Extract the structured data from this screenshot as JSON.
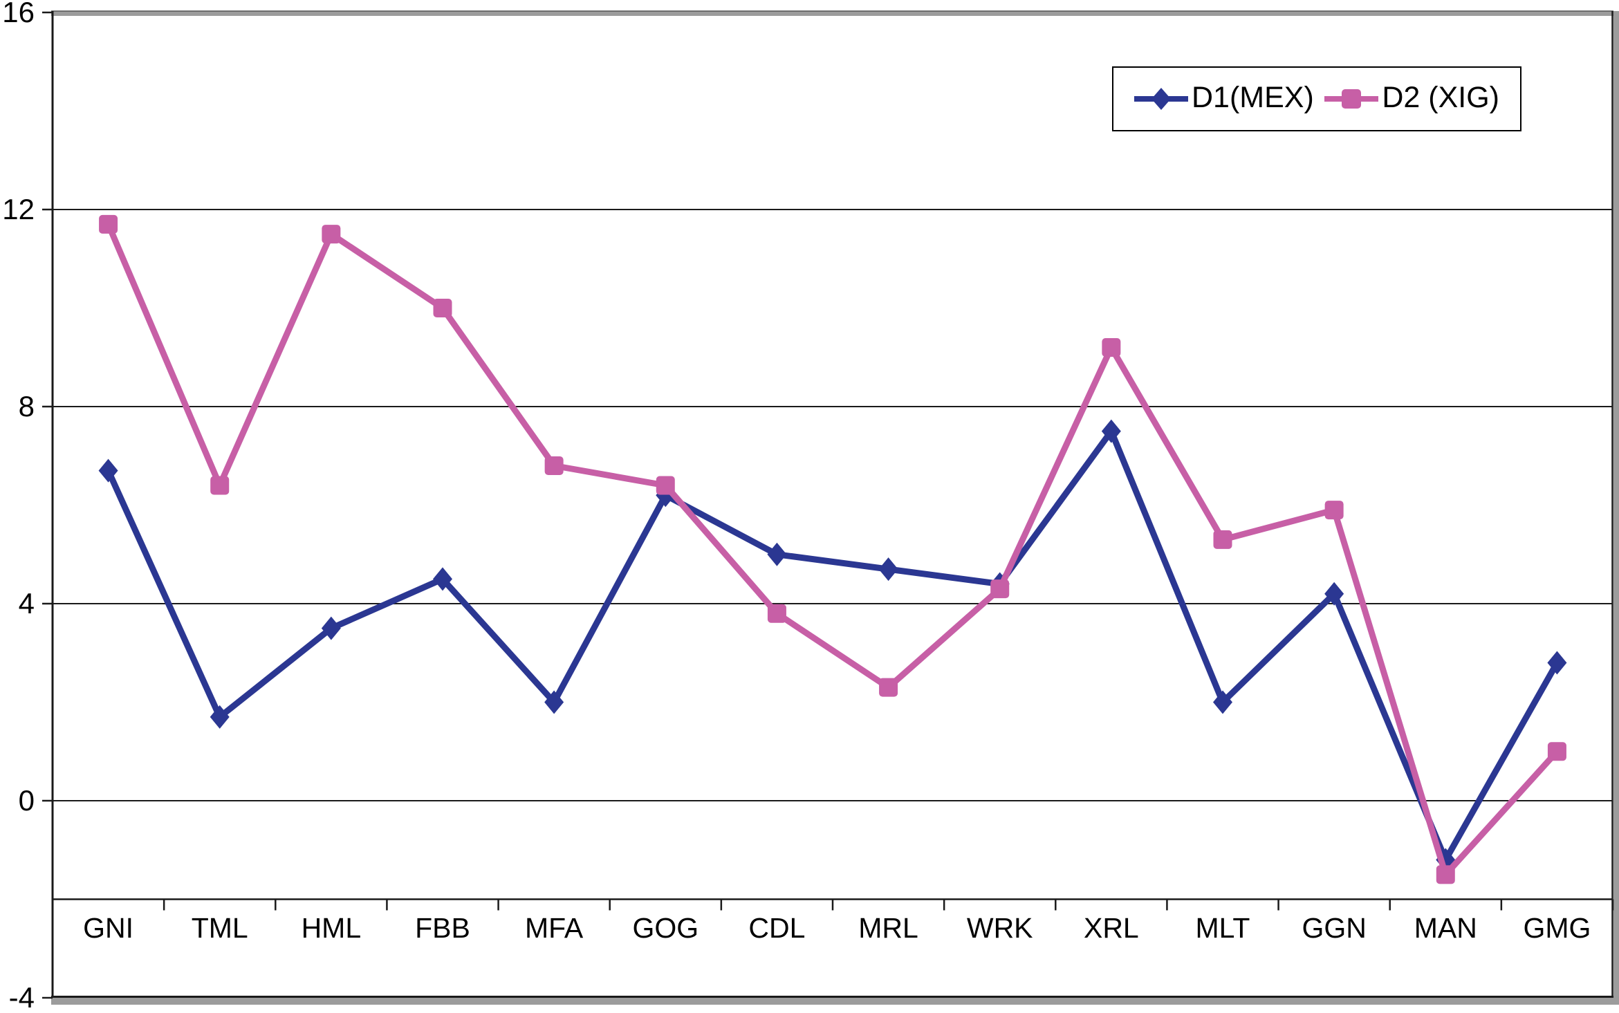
{
  "chart_data": {
    "type": "line",
    "title": "",
    "categories": [
      "GNI",
      "TML",
      "HML",
      "FBB",
      "MFA",
      "GOG",
      "CDL",
      "MRL",
      "WRK",
      "XRL",
      "MLT",
      "GGN",
      "MAN",
      "GMG"
    ],
    "series": [
      {
        "name": "D1(MEX)",
        "color": "#2B3792",
        "marker": "diamond",
        "values": [
          6.7,
          1.7,
          3.5,
          4.5,
          2.0,
          6.2,
          5.0,
          4.7,
          4.4,
          7.5,
          2.0,
          4.2,
          -1.2,
          2.8
        ]
      },
      {
        "name": "D2 (XIG)",
        "color": "#C75FA6",
        "marker": "square",
        "values": [
          11.7,
          6.4,
          11.5,
          10.0,
          6.8,
          6.4,
          3.8,
          2.3,
          4.3,
          9.2,
          5.3,
          5.9,
          -1.5,
          1.0
        ]
      }
    ],
    "xlabel": "",
    "ylabel": "",
    "ylim": [
      -4,
      16
    ],
    "yticks": [
      16,
      12,
      8,
      4,
      0,
      -4
    ],
    "ytick_labels": [
      "16",
      "12",
      "8",
      "4",
      "0",
      "-4"
    ],
    "gridlines": [
      12,
      8,
      4,
      0
    ],
    "category_axis_at": -2,
    "grid": "horizontal",
    "legend_position": "top-right",
    "axis_color": "#1a1a1a",
    "shadow_color": "#9c9c9c",
    "background": "#ffffff"
  },
  "legend": {
    "items": [
      {
        "label": "D1(MEX)"
      },
      {
        "label": "D2 (XIG)"
      }
    ]
  }
}
